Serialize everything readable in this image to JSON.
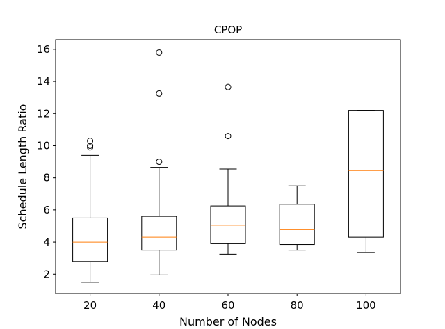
{
  "chart_data": {
    "type": "box",
    "title": "CPOP",
    "xlabel": "Number of Nodes",
    "ylabel": "Schedule Length Ratio",
    "ylim": [
      0.8,
      16.6
    ],
    "yticks": [
      2,
      4,
      6,
      8,
      10,
      12,
      14,
      16
    ],
    "categories": [
      "20",
      "40",
      "60",
      "80",
      "100"
    ],
    "boxes": [
      {
        "category": "20",
        "whisker_low": 1.5,
        "q1": 2.8,
        "median": 4.0,
        "q3": 5.5,
        "whisker_high": 9.4,
        "outliers": [
          9.9,
          10.0,
          10.3
        ]
      },
      {
        "category": "40",
        "whisker_low": 1.95,
        "q1": 3.5,
        "median": 4.3,
        "q3": 5.6,
        "whisker_high": 8.65,
        "outliers": [
          9.0,
          13.25,
          15.8
        ]
      },
      {
        "category": "60",
        "whisker_low": 3.25,
        "q1": 3.9,
        "median": 5.05,
        "q3": 6.25,
        "whisker_high": 8.55,
        "outliers": [
          10.6,
          13.65
        ]
      },
      {
        "category": "80",
        "whisker_low": 3.5,
        "q1": 3.85,
        "median": 4.8,
        "q3": 6.35,
        "whisker_high": 7.5,
        "outliers": []
      },
      {
        "category": "100",
        "whisker_low": 3.35,
        "q1": 4.3,
        "median": 8.45,
        "q3": 12.2,
        "whisker_high": 12.2,
        "outliers": []
      }
    ],
    "colors": {
      "box": "#000000",
      "median": "#ff7f0e"
    },
    "grid": false,
    "legend": "none"
  }
}
